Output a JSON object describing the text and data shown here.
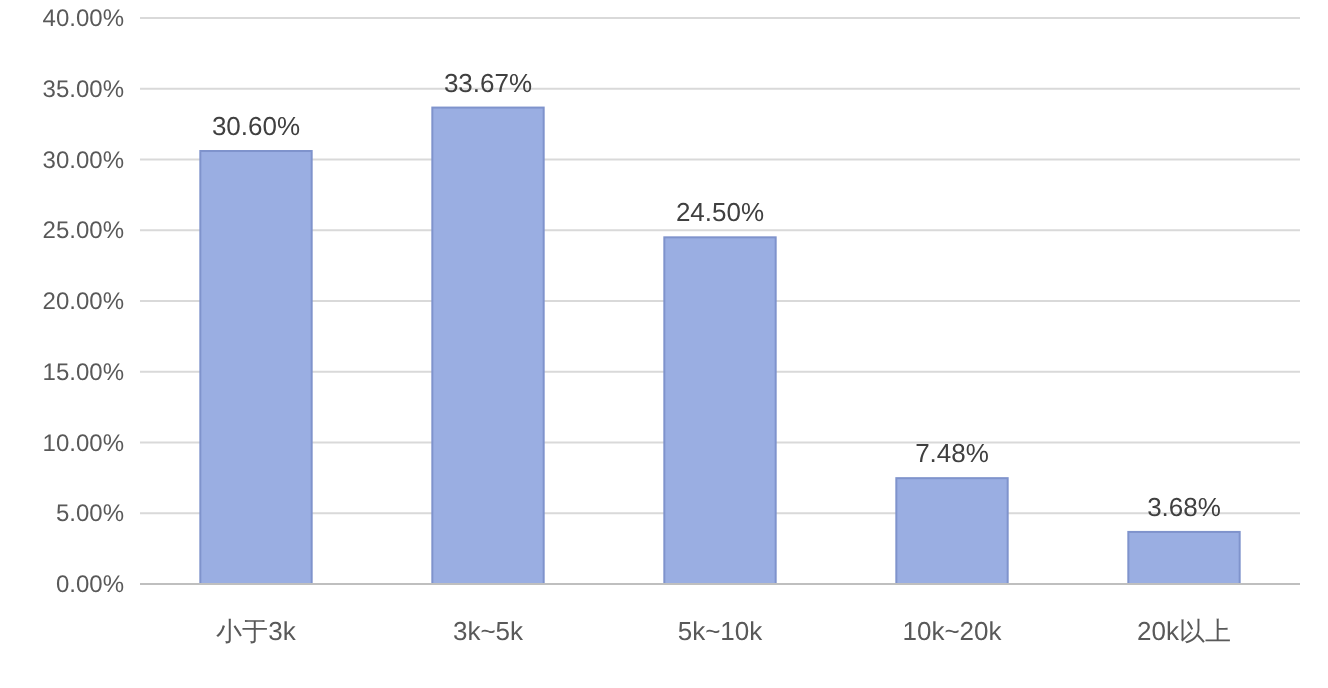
{
  "chart_data": {
    "type": "bar",
    "categories": [
      "小于3k",
      "3k~5k",
      "5k~10k",
      "10k~20k",
      "20k以上"
    ],
    "values": [
      30.6,
      33.67,
      24.5,
      7.48,
      3.68
    ],
    "value_labels": [
      "30.60%",
      "33.67%",
      "24.50%",
      "7.48%",
      "3.68%"
    ],
    "color": "#9aaee2",
    "ylim": [
      0,
      40
    ],
    "yticks": [
      {
        "value": 0,
        "label": "0.00%"
      },
      {
        "value": 5,
        "label": "5.00%"
      },
      {
        "value": 10,
        "label": "10.00%"
      },
      {
        "value": 15,
        "label": "15.00%"
      },
      {
        "value": 20,
        "label": "20.00%"
      },
      {
        "value": 25,
        "label": "25.00%"
      },
      {
        "value": 30,
        "label": "30.00%"
      },
      {
        "value": 35,
        "label": "35.00%"
      },
      {
        "value": 40,
        "label": "40.00%"
      }
    ],
    "grid": "y"
  }
}
